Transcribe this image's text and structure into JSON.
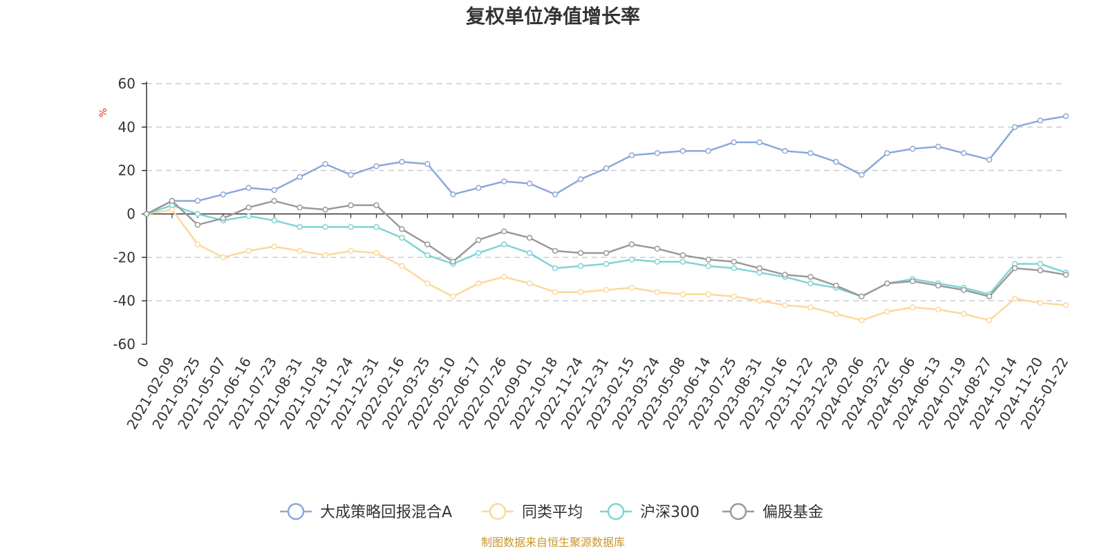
{
  "page": {
    "title": "复权单位净值增长率",
    "source": "制图数据来自恒生聚源数据库"
  },
  "chart_data": {
    "type": "line",
    "title": "复权单位净值增长率",
    "ylabel": "%",
    "xlabel": "",
    "ylim": [
      -60,
      60
    ],
    "yticks": [
      60,
      40,
      20,
      0,
      -20,
      -40,
      -60
    ],
    "grid": "horizontal dashed",
    "legend_position": "bottom-center",
    "x": [
      "0",
      "2021-02-09",
      "2021-03-25",
      "2021-05-07",
      "2021-06-16",
      "2021-07-23",
      "2021-08-31",
      "2021-10-18",
      "2021-11-24",
      "2021-12-31",
      "2022-02-16",
      "2022-03-25",
      "2022-05-10",
      "2022-06-17",
      "2022-07-26",
      "2022-09-01",
      "2022-10-18",
      "2022-11-24",
      "2022-12-31",
      "2023-02-15",
      "2023-03-24",
      "2023-05-08",
      "2023-06-14",
      "2023-07-25",
      "2023-08-31",
      "2023-10-16",
      "2023-11-22",
      "2023-12-29",
      "2024-02-06",
      "2024-03-22",
      "2024-05-06",
      "2024-06-13",
      "2024-07-19",
      "2024-08-27",
      "2024-10-14",
      "2024-11-20",
      "2025-01-22"
    ],
    "series": [
      {
        "name": "大成策略回报混合A",
        "color": "#8aa8d8",
        "values": [
          0,
          6,
          6,
          9,
          12,
          11,
          17,
          23,
          18,
          22,
          24,
          23,
          9,
          12,
          15,
          14,
          9,
          16,
          21,
          27,
          28,
          29,
          29,
          33,
          33,
          29,
          28,
          24,
          18,
          28,
          30,
          31,
          28,
          25,
          40,
          43,
          45
        ]
      },
      {
        "name": "同类平均",
        "color": "#fcd89a",
        "values": [
          0,
          2,
          -14,
          -20,
          -17,
          -15,
          -17,
          -19,
          -17,
          -18,
          -24,
          -32,
          -38,
          -32,
          -29,
          -32,
          -36,
          -36,
          -35,
          -34,
          -36,
          -37,
          -37,
          -38,
          -40,
          -42,
          -43,
          -46,
          -49,
          -45,
          -43,
          -44,
          -46,
          -49,
          -39,
          -41,
          -42
        ]
      },
      {
        "name": "沪深300",
        "color": "#7fd3d5",
        "values": [
          0,
          4,
          0,
          -3,
          -1,
          -3,
          -6,
          -6,
          -6,
          -6,
          -11,
          -19,
          -23,
          -18,
          -14,
          -18,
          -25,
          -24,
          -23,
          -21,
          -22,
          -22,
          -24,
          -25,
          -27,
          -29,
          -32,
          -34,
          -38,
          -32,
          -30,
          -32,
          -34,
          -37,
          -23,
          -23,
          -27
        ]
      },
      {
        "name": "偏股基金",
        "color": "#999999",
        "values": [
          0,
          6,
          -5,
          -2,
          3,
          6,
          3,
          2,
          4,
          4,
          -7,
          -14,
          -22,
          -12,
          -8,
          -11,
          -17,
          -18,
          -18,
          -14,
          -16,
          -19,
          -21,
          -22,
          -25,
          -28,
          -29,
          -33,
          -38,
          -32,
          -31,
          -33,
          -35,
          -38,
          -25,
          -26,
          -28
        ]
      }
    ]
  }
}
